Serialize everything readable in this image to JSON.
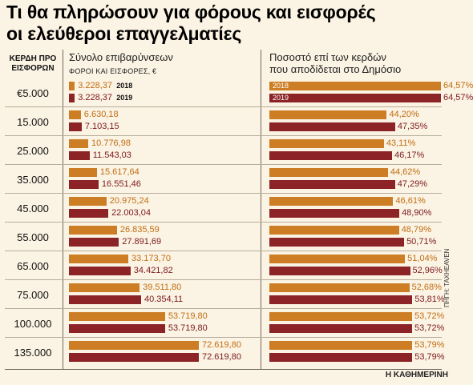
{
  "title": {
    "line1": "Τι θα πληρώσουν για φόρους και εισφορές",
    "line2": "οι ελεύθεροι επαγγελματίες"
  },
  "headers": {
    "row_label_line1": "ΚΕΡΔΗ ΠΡΟ",
    "row_label_line2": "ΕΙΣΦΟΡΩΝ",
    "left_title": "Σύνολο επιβαρύνσεων",
    "left_subtitle": "ΦΟΡΟΙ ΚΑΙ ΕΙΣΦΟΡΕΣ, €",
    "right_title_line1": "Ποσοστό επί των κερδών",
    "right_title_line2": "που αποδίδεται στο Δημόσιο"
  },
  "source": "ΠΗΓΗ: TAXHEAVEN",
  "brand": "Η ΚΑΘΗΜΕΡΙΝΗ",
  "colors": {
    "y2018": "#cd7d24",
    "y2019": "#8b2327"
  },
  "chart_data": [
    {
      "type": "bar",
      "categories": [
        "€5.000",
        "15.000",
        "25.000",
        "35.000",
        "45.000",
        "55.000",
        "65.000",
        "75.000",
        "100.000",
        "135.000"
      ],
      "series": [
        {
          "name": "2018",
          "values": [
            3228.37,
            6630.18,
            10776.98,
            15617.64,
            20975.24,
            26835.59,
            33173.7,
            39511.8,
            53719.8,
            72619.8
          ],
          "labels": [
            "3.228,37",
            "6.630,18",
            "10.776,98",
            "15.617,64",
            "20.975,24",
            "26.835,59",
            "33.173,70",
            "39.511,80",
            "53.719,80",
            "72.619,80"
          ]
        },
        {
          "name": "2019",
          "values": [
            3228.37,
            7103.15,
            11543.03,
            16551.46,
            22003.04,
            27891.69,
            34421.82,
            40354.11,
            53719.8,
            72619.8
          ],
          "labels": [
            "3.228,37",
            "7.103,15",
            "11.543,03",
            "16.551,46",
            "22.003,04",
            "27.891,69",
            "34.421,82",
            "40.354,11",
            "53.719,80",
            "72.619,80"
          ]
        }
      ]
    },
    {
      "type": "bar",
      "categories": [
        "€5.000",
        "15.000",
        "25.000",
        "35.000",
        "45.000",
        "55.000",
        "65.000",
        "75.000",
        "100.000",
        "135.000"
      ],
      "series": [
        {
          "name": "2018",
          "values": [
            64.57,
            44.2,
            43.11,
            44.62,
            46.61,
            48.79,
            51.04,
            52.68,
            53.72,
            53.79
          ],
          "labels": [
            "64,57%",
            "44,20%",
            "43,11%",
            "44,62%",
            "46,61%",
            "48,79%",
            "51,04%",
            "52,68%",
            "53,72%",
            "53,79%"
          ]
        },
        {
          "name": "2019",
          "values": [
            64.57,
            47.35,
            46.17,
            47.29,
            48.9,
            50.71,
            52.96,
            53.81,
            53.72,
            53.79
          ],
          "labels": [
            "64,57%",
            "47,35%",
            "46,17%",
            "47,29%",
            "48,90%",
            "50,71%",
            "52,96%",
            "53,81%",
            "53,72%",
            "53,79%"
          ]
        }
      ]
    }
  ]
}
